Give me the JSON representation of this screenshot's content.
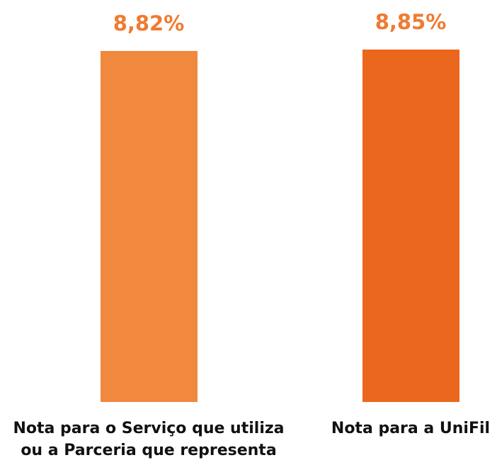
{
  "chart_data": {
    "type": "bar",
    "categories": [
      "Nota para o Serviço que utiliza\nou a Parceria que representa",
      "Nota para a UniFil"
    ],
    "values": [
      8.82,
      8.85
    ],
    "value_labels": [
      "8,82%",
      "8,85%"
    ],
    "colors": [
      "#f0883e",
      "#eb671d"
    ],
    "label_color": "#ef7b31"
  }
}
